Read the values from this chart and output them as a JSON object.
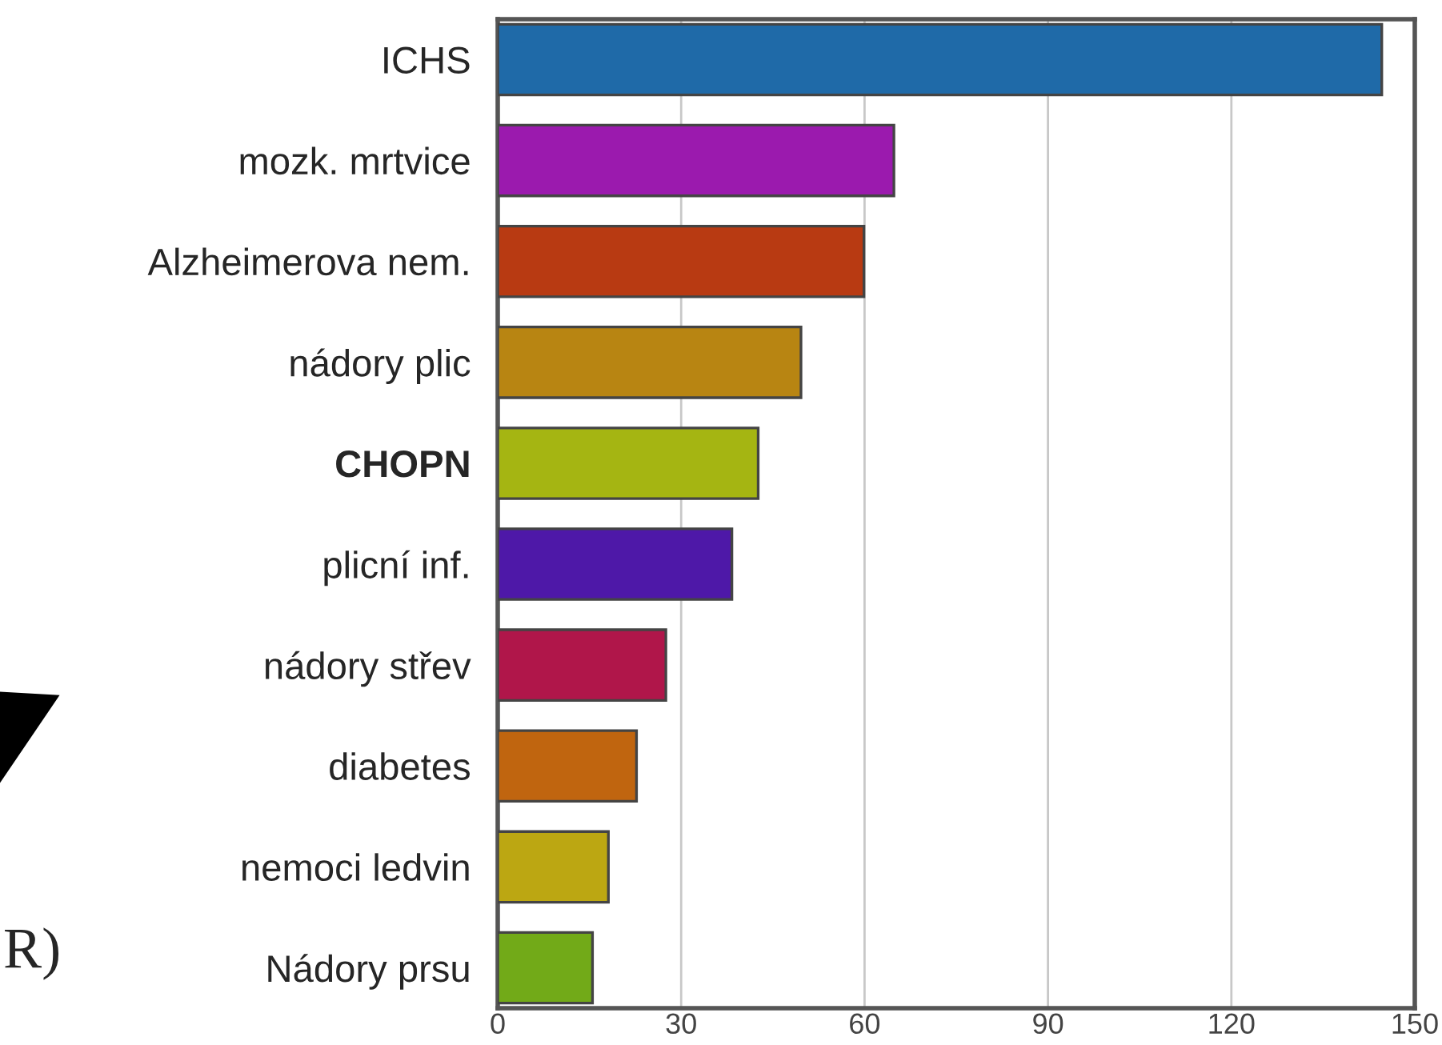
{
  "chart_data": {
    "type": "bar",
    "orientation": "horizontal",
    "categories": [
      "ICHS",
      "mozk. mrtvice",
      "Alzheimerova nem.",
      "nádory plic",
      "CHOPN",
      "plicní inf.",
      "nádory střev",
      "diabetes",
      "nemoci ledvin",
      "Nádory prsu"
    ],
    "values": [
      144.6,
      64.8,
      59.9,
      49.6,
      42.6,
      38.3,
      27.5,
      22.7,
      18.1,
      15.5
    ],
    "colors": [
      "#1f6aa8",
      "#9b1aae",
      "#b83a12",
      "#b88512",
      "#a5b512",
      "#4e18a8",
      "#b0164a",
      "#c0650f",
      "#bca712",
      "#72aa18"
    ],
    "xlim": [
      0,
      150
    ],
    "xticks": [
      0,
      30,
      60,
      90,
      120,
      150
    ],
    "grid": "x",
    "annotations": [
      "R)"
    ]
  }
}
